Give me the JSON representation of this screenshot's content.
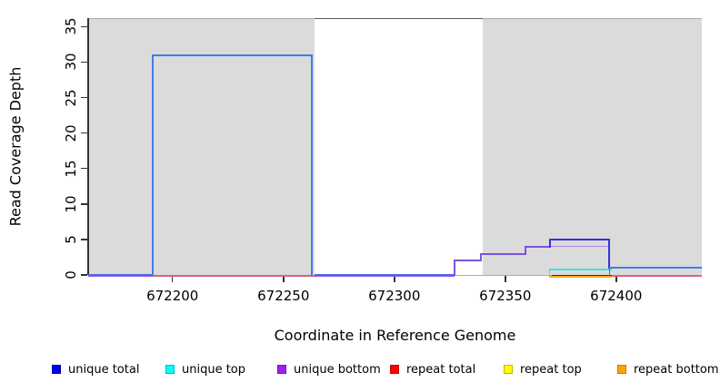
{
  "chart_data": {
    "type": "line",
    "subtype": "step-coverage",
    "title": "",
    "xlabel": "Coordinate in Reference Genome",
    "ylabel": "Read Coverage Depth",
    "axes": {
      "xlim": [
        672162,
        672438.6
      ],
      "ylim": [
        0,
        36.2
      ],
      "x_ticks": [
        672200,
        672250,
        672300,
        672350,
        672400
      ],
      "y_ticks": [
        0,
        5,
        10,
        15,
        20,
        25,
        30,
        35
      ],
      "grid": false
    },
    "shaded_regions": [
      {
        "from": 672162,
        "to": 672264
      },
      {
        "from": 672340,
        "to": 672438.6
      }
    ],
    "series": [
      {
        "name": "unique total",
        "segments": [
          {
            "from": 672162,
            "to": 672191,
            "depth": 0
          },
          {
            "from": 672191,
            "to": 672263,
            "depth": 31
          },
          {
            "from": 672263,
            "to": 672327,
            "depth": 0
          },
          {
            "from": 672327,
            "to": 672339,
            "depth": 2
          },
          {
            "from": 672339,
            "to": 672359,
            "depth": 3
          },
          {
            "from": 672359,
            "to": 672370,
            "depth": 4
          },
          {
            "from": 672370,
            "to": 672397,
            "depth": 5
          },
          {
            "from": 672397,
            "to": 672438.6,
            "depth": 1
          }
        ]
      },
      {
        "name": "unique top",
        "segments": [
          {
            "from": 672162,
            "to": 672370,
            "depth": 0
          },
          {
            "from": 672370,
            "to": 672438.6,
            "depth": 1
          }
        ]
      },
      {
        "name": "unique bottom",
        "segments": [
          {
            "from": 672162,
            "to": 672327,
            "depth": 0
          },
          {
            "from": 672327,
            "to": 672339,
            "depth": 2
          },
          {
            "from": 672339,
            "to": 672359,
            "depth": 3
          },
          {
            "from": 672359,
            "to": 672397,
            "depth": 4
          },
          {
            "from": 672397,
            "to": 672438.6,
            "depth": 0
          }
        ]
      },
      {
        "name": "repeat total",
        "segments": [
          {
            "from": 672162,
            "to": 672438.6,
            "depth": 0
          }
        ]
      },
      {
        "name": "repeat top",
        "segments": [
          {
            "from": 672162,
            "to": 672438.6,
            "depth": 0
          }
        ]
      },
      {
        "name": "repeat bottom",
        "segments": [
          {
            "from": 672162,
            "to": 672438.6,
            "depth": 0
          }
        ]
      }
    ],
    "legend_position": "bottom"
  },
  "render": {
    "colors": {
      "shaded": "#dbdbdb",
      "shaded_edge": "#ababab",
      "box_top_mid": "#5a5a5a",
      "axis": "#333333"
    },
    "polylines": [
      {
        "color": "#8a5ce8",
        "w": 1.5,
        "dy": 1.5,
        "pts": [
          [
            672162,
            0
          ],
          [
            672191,
            0
          ]
        ]
      },
      {
        "color": "#4a6ae8",
        "w": 1.5,
        "dy": 0,
        "pts": [
          [
            672162,
            0
          ],
          [
            672191,
            0
          ]
        ]
      },
      {
        "color": "#e0607a",
        "w": 1.5,
        "dy": 1,
        "pts": [
          [
            672191,
            0
          ],
          [
            672264,
            0
          ]
        ]
      },
      {
        "color": "#8a5ce8",
        "w": 1.5,
        "dy": 1.5,
        "pts": [
          [
            672264,
            0
          ],
          [
            672327,
            0
          ]
        ]
      },
      {
        "color": "#4a6ae8",
        "w": 1.5,
        "dy": 0,
        "pts": [
          [
            672264,
            0
          ],
          [
            672327,
            0
          ]
        ]
      },
      {
        "color": "#7ccd7c",
        "w": 1.5,
        "dy": 0.5,
        "pts": [
          [
            672327,
            0
          ],
          [
            672371,
            0
          ]
        ]
      },
      {
        "color": "#ffa51e",
        "w": 2,
        "dy": 1.5,
        "pts": [
          [
            672370,
            0
          ],
          [
            672398,
            0
          ]
        ]
      },
      {
        "color": "#e0607a",
        "w": 1.5,
        "dy": 1,
        "pts": [
          [
            672398,
            0
          ],
          [
            672438.6,
            0
          ]
        ]
      },
      {
        "color": "#40e0e0",
        "w": 1.5,
        "dy": 2,
        "pts": [
          [
            672370,
            0
          ],
          [
            672370,
            1
          ],
          [
            672398,
            1
          ]
        ]
      },
      {
        "color": "#a88ce0",
        "w": 1.5,
        "dy": 0,
        "pts": [
          [
            672370,
            4
          ],
          [
            672397,
            4
          ]
        ]
      },
      {
        "color": "#7b52e0",
        "w": 2,
        "dy": 0,
        "pts": [
          [
            672327,
            0
          ],
          [
            672327,
            2
          ],
          [
            672339,
            2
          ],
          [
            672339,
            3
          ],
          [
            672359,
            3
          ],
          [
            672359,
            4
          ],
          [
            672370,
            4
          ]
        ]
      },
      {
        "color": "#7b52e0",
        "w": 1.5,
        "dy": 0,
        "pts": [
          [
            672397,
            4
          ],
          [
            672397,
            0
          ]
        ]
      },
      {
        "color": "#3434e0",
        "w": 2,
        "dy": 0,
        "pts": [
          [
            672370,
            4
          ],
          [
            672370,
            5
          ],
          [
            672397,
            5
          ],
          [
            672397,
            1
          ]
        ]
      },
      {
        "color": "#3584e4",
        "w": 2,
        "dy": 0,
        "pts": [
          [
            672397,
            1
          ],
          [
            672438.6,
            1
          ]
        ]
      },
      {
        "color": "#3f7dea",
        "w": 2,
        "dy": 0,
        "pts": [
          [
            672191,
            0
          ],
          [
            672191,
            31
          ],
          [
            672263,
            31
          ],
          [
            672263,
            0
          ]
        ]
      }
    ]
  },
  "legend": {
    "items": [
      {
        "label": "unique total",
        "fill": "#0000f0",
        "border": "#0000b0"
      },
      {
        "label": "unique top",
        "fill": "#00ffff",
        "border": "#00b8b8"
      },
      {
        "label": "unique bottom",
        "fill": "#a020f0",
        "border": "#7716b4"
      },
      {
        "label": "repeat total",
        "fill": "#ff0000",
        "border": "#bb0000"
      },
      {
        "label": "repeat top",
        "fill": "#ffff00",
        "border": "#bcbc00"
      },
      {
        "label": "repeat bottom",
        "fill": "#ffa500",
        "border": "#c07c00"
      }
    ]
  }
}
